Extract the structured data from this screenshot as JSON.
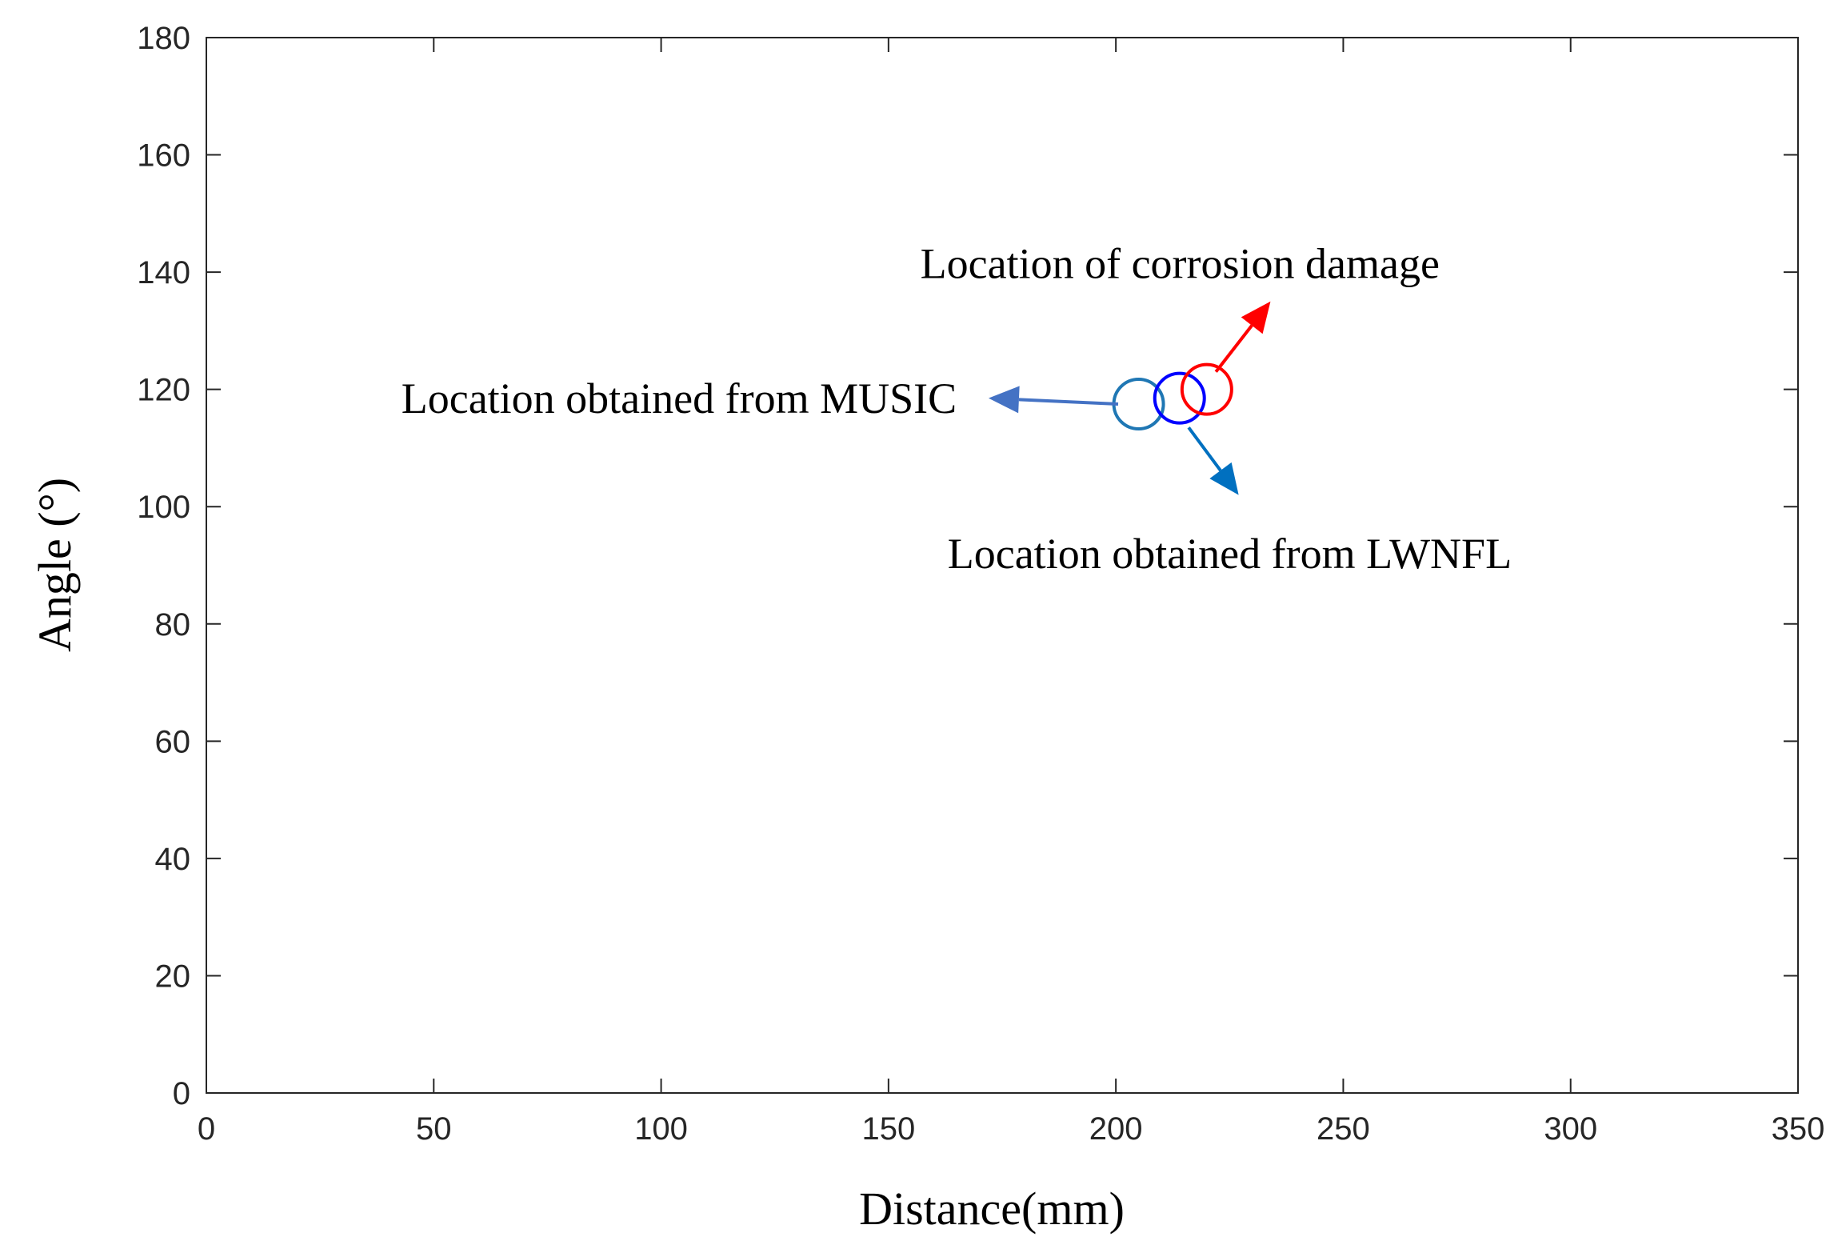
{
  "chart_data": {
    "type": "scatter",
    "xlabel": "Distance(mm)",
    "ylabel": "Angle (°)",
    "xlim": [
      0,
      350
    ],
    "ylim": [
      0,
      180
    ],
    "xticks": [
      0,
      50,
      100,
      150,
      200,
      250,
      300,
      350
    ],
    "yticks": [
      0,
      20,
      40,
      60,
      80,
      100,
      120,
      140,
      160,
      180
    ],
    "grid": false,
    "points": [
      {
        "x": 205,
        "y": 117.5,
        "color": "#1f77b4"
      },
      {
        "x": 214,
        "y": 118.5,
        "color": "#0000ff"
      },
      {
        "x": 220,
        "y": 120,
        "color": "#ff0000"
      }
    ],
    "annotations": [
      {
        "text": "Location of corrosion damage",
        "color": "#ff0000",
        "from": [
          222,
          123
        ],
        "to": [
          234,
          135
        ],
        "text_at": [
          157,
          139
        ],
        "anchor": "start"
      },
      {
        "text": "Location obtained from MUSIC",
        "color": "#4472c4",
        "from": [
          200.5,
          117.5
        ],
        "to": [
          172,
          118.5
        ],
        "text_at": [
          165,
          116
        ],
        "anchor": "end"
      },
      {
        "text": "Location obtained from LWNFL",
        "color": "#0070c0",
        "from": [
          216,
          113.5
        ],
        "to": [
          227,
          102
        ],
        "text_at": [
          163,
          89.5
        ],
        "anchor": "start"
      }
    ]
  }
}
